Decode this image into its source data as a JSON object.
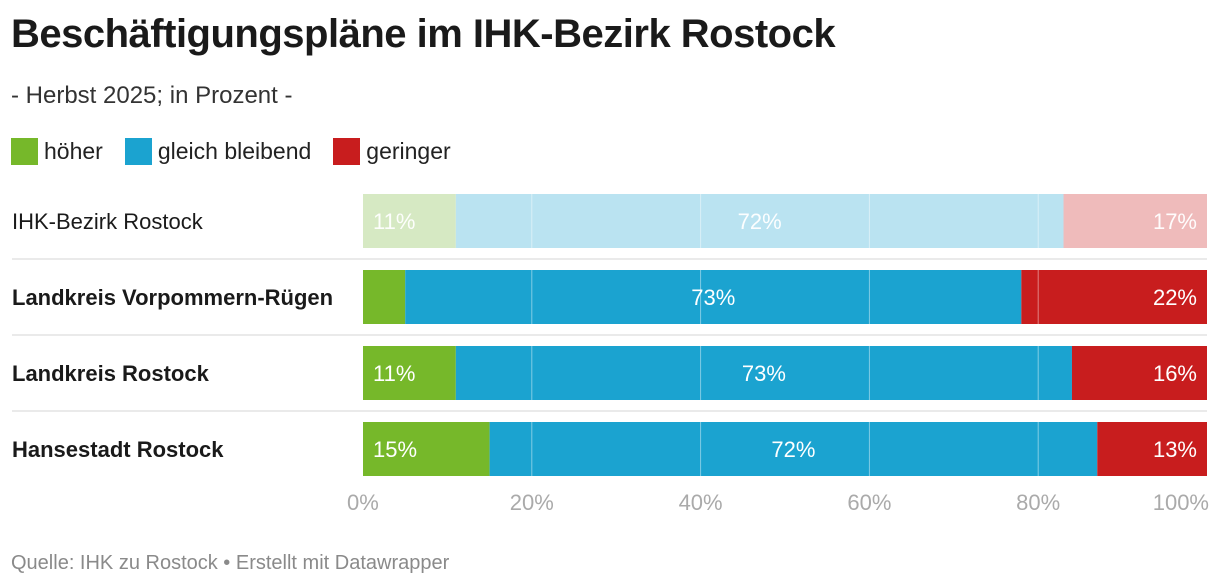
{
  "header": {
    "title": "Beschäftigungspläne im IHK-Bezirk Rostock",
    "subtitle": "- Herbst 2025; in Prozent -"
  },
  "footer": {
    "source": "Quelle: IHK zu Rostock • Erstellt mit Datawrapper"
  },
  "colors": {
    "hoeher": "#76b82a",
    "gleich": "#1ba3d0",
    "geringer": "#c81d1e",
    "hoeher_light": "#d6e9c3",
    "gleich_light": "#bae3f1",
    "geringer_light": "#efbbbb"
  },
  "chart_data": {
    "type": "bar",
    "orientation": "horizontal",
    "stacked": true,
    "title": "Beschäftigungspläne im IHK-Bezirk Rostock",
    "subtitle": "- Herbst 2025; in Prozent -",
    "categories": [
      "IHK-Bezirk Rostock",
      "Landkreis Vorpommern-Rügen",
      "Landkreis Rostock",
      "Hansestadt Rostock"
    ],
    "series": [
      {
        "name": "höher",
        "key": "hoeher",
        "values": [
          11,
          5,
          11,
          15
        ],
        "labels": [
          "11%",
          "",
          "11%",
          "15%"
        ]
      },
      {
        "name": "gleich bleibend",
        "key": "gleich",
        "values": [
          72,
          73,
          73,
          72
        ],
        "labels": [
          "72%",
          "73%",
          "73%",
          "72%"
        ]
      },
      {
        "name": "geringer",
        "key": "geringer",
        "values": [
          17,
          22,
          16,
          13
        ],
        "labels": [
          "17%",
          "22%",
          "16%",
          "13%"
        ]
      }
    ],
    "highlighted_rows": [
      false,
      true,
      true,
      true
    ],
    "xlim": [
      0,
      100
    ],
    "xticks": [
      "0%",
      "20%",
      "40%",
      "60%",
      "80%",
      "100%"
    ],
    "grid": true,
    "legend": "top-left"
  }
}
